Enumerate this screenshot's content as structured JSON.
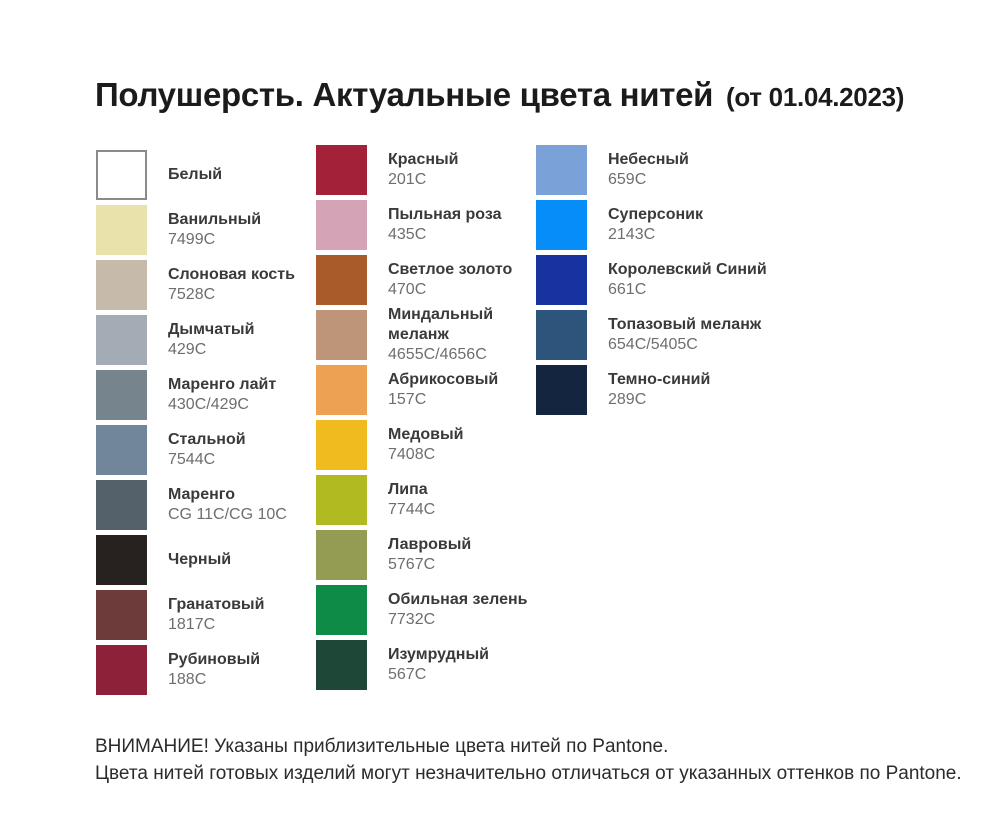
{
  "title": {
    "main": "Полушерсть. Актуальные цвета нитей",
    "date": "(от 01.04.2023)"
  },
  "columns": [
    {
      "items": [
        {
          "name": "Белый",
          "code": "",
          "color": "#FFFFFF",
          "bordered": true
        },
        {
          "name": "Ванильный",
          "code": "7499C",
          "color": "#EAE2AB",
          "bordered": false
        },
        {
          "name": "Слоновая кость",
          "code": "7528C",
          "color": "#C6BBAB",
          "bordered": false
        },
        {
          "name": "Дымчатый",
          "code": "429C",
          "color": "#A3ACB4",
          "bordered": false
        },
        {
          "name": "Маренго лайт",
          "code": "430C/429C",
          "color": "#76848E",
          "bordered": false
        },
        {
          "name": "Стальной",
          "code": "7544C",
          "color": "#71869B",
          "bordered": false
        },
        {
          "name": "Маренго",
          "code": "CG 11C/CG 10C",
          "color": "#54616B",
          "bordered": false
        },
        {
          "name": "Черный",
          "code": "",
          "color": "#272120",
          "bordered": false
        },
        {
          "name": "Гранатовый",
          "code": "1817C",
          "color": "#6C3B3A",
          "bordered": false
        },
        {
          "name": "Рубиновый",
          "code": "188C",
          "color": "#8D2139",
          "bordered": false
        }
      ]
    },
    {
      "items": [
        {
          "name": "Красный",
          "code": "201C",
          "color": "#A32239",
          "bordered": false
        },
        {
          "name": "Пыльная роза",
          "code": "435C",
          "color": "#D4A3B6",
          "bordered": false
        },
        {
          "name": "Светлое золото",
          "code": "470C",
          "color": "#A95C29",
          "bordered": false
        },
        {
          "name": "Миндальный меланж",
          "code": "4655C/4656C",
          "color": "#BF9579",
          "bordered": false
        },
        {
          "name": "Абрикосовый",
          "code": "157C",
          "color": "#EDA253",
          "bordered": false
        },
        {
          "name": "Медовый",
          "code": "7408C",
          "color": "#F0BB1E",
          "bordered": false
        },
        {
          "name": "Липа",
          "code": "7744C",
          "color": "#B1BB21",
          "bordered": false
        },
        {
          "name": "Лавровый",
          "code": "5767C",
          "color": "#949C53",
          "bordered": false
        },
        {
          "name": "Обильная зелень",
          "code": "7732C",
          "color": "#0E8B46",
          "bordered": false
        },
        {
          "name": "Изумрудный",
          "code": "567C",
          "color": "#1E4737",
          "bordered": false
        }
      ]
    },
    {
      "items": [
        {
          "name": "Небесный",
          "code": "659C",
          "color": "#7BA2D8",
          "bordered": false
        },
        {
          "name": "Суперсоник",
          "code": "2143C",
          "color": "#078DF7",
          "bordered": false
        },
        {
          "name": "Королевский Синий",
          "code": "661C",
          "color": "#17339E",
          "bordered": false
        },
        {
          "name": "Топазовый меланж",
          "code": "654C/5405C",
          "color": "#2D547A",
          "bordered": false
        },
        {
          "name": "Темно-синий",
          "code": "289C",
          "color": "#13253F",
          "bordered": false
        }
      ]
    }
  ],
  "footer": {
    "line1": "ВНИМАНИЕ! Указаны приблизительные цвета нитей по Pantone.",
    "line2": "Цвета нитей готовых изделий могут незначительно отличаться от указанных оттенков по Pantone."
  }
}
